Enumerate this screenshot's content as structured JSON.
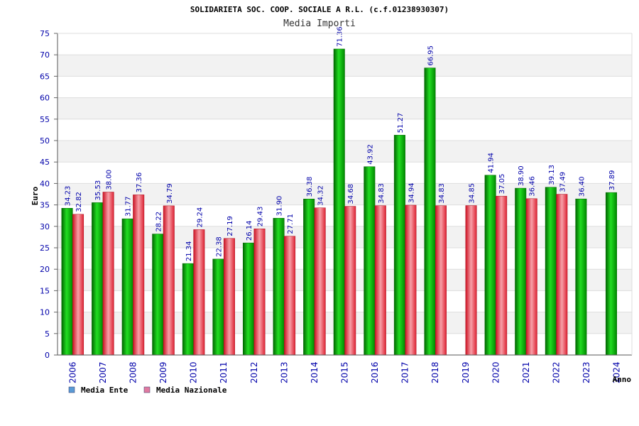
{
  "chart_data": {
    "type": "bar",
    "title": "SOLIDARIETA SOC. COOP. SOCIALE A R.L. (c.f.01238930307)",
    "subtitle": "Media Importi",
    "ylabel": "Euro",
    "xlabel": "Anno",
    "ylim": [
      0,
      75
    ],
    "yticks": [
      0,
      5,
      10,
      15,
      20,
      25,
      30,
      35,
      40,
      45,
      50,
      55,
      60,
      65,
      70,
      75
    ],
    "grid": true,
    "legend_position": "bottom-left",
    "categories": [
      "2006",
      "2007",
      "2008",
      "2009",
      "2010",
      "2011",
      "2012",
      "2013",
      "2014",
      "2015",
      "2016",
      "2017",
      "2018",
      "2019",
      "2020",
      "2021",
      "2022",
      "2023",
      "2024"
    ],
    "series": [
      {
        "name": "Media Ente",
        "color": "#00aa00",
        "legend_color": "#5b9bd5",
        "values": [
          34.23,
          35.53,
          31.77,
          28.22,
          21.34,
          22.38,
          26.14,
          31.9,
          36.38,
          71.36,
          43.92,
          51.27,
          66.95,
          null,
          41.94,
          38.9,
          39.13,
          36.4,
          37.89
        ],
        "labels": [
          "34.23",
          "35.53",
          "31.77",
          "28.22",
          "21.34",
          "22.38",
          "26.14",
          "31.90",
          "36.38",
          "71.36",
          "43.92",
          "51.27",
          "66.95",
          "",
          "41.94",
          "38.90",
          "39.13",
          "36.40",
          "37.89"
        ]
      },
      {
        "name": "Media Nazionale",
        "color": "#dd2233",
        "legend_color": "#e07aa0",
        "values": [
          32.82,
          38.0,
          37.36,
          34.79,
          29.24,
          27.19,
          29.43,
          27.71,
          34.32,
          34.68,
          34.83,
          34.94,
          34.83,
          34.85,
          37.05,
          36.46,
          37.49,
          null,
          null
        ],
        "labels": [
          "32.82",
          "38.00",
          "37.36",
          "34.79",
          "29.24",
          "27.19",
          "29.43",
          "27.71",
          "34.32",
          "34.68",
          "34.83",
          "34.94",
          "34.83",
          "34.85",
          "37.05",
          "36.46",
          "37.49",
          "",
          ""
        ]
      }
    ]
  }
}
